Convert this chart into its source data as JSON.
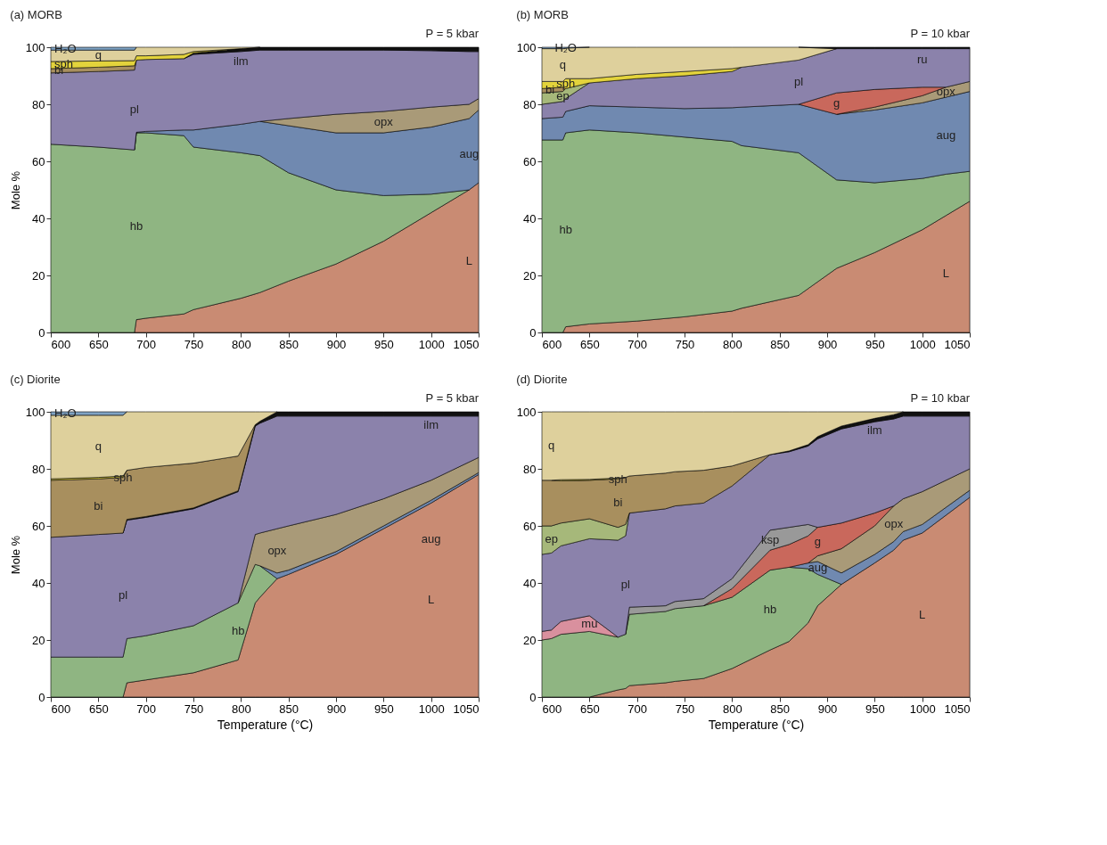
{
  "chart_data": [
    {
      "type": "area",
      "stacked": true,
      "title": "(a) MORB",
      "ylabel": "Mole %",
      "annotations": [
        "P = 5 kbar"
      ],
      "x": [
        600,
        650,
        688,
        690,
        700,
        740,
        750,
        800,
        820,
        850,
        900,
        950,
        1000,
        1040,
        1050
      ],
      "xlim": [
        600,
        1050
      ],
      "xticks": [
        600,
        650,
        700,
        750,
        800,
        850,
        900,
        950,
        1000,
        1050
      ],
      "ylim": [
        0,
        100
      ],
      "yticks": [
        0,
        20,
        40,
        60,
        80,
        100
      ],
      "series": [
        {
          "name": "L",
          "color": "#c98b73",
          "values": [
            null,
            null,
            0,
            4.5,
            5,
            6.5,
            8,
            12,
            14,
            18,
            24,
            32,
            42,
            50,
            52.5
          ]
        },
        {
          "name": "hb",
          "color": "#8fb582",
          "values": [
            66,
            65,
            64,
            65.5,
            65,
            62.5,
            57,
            51,
            48,
            38,
            26,
            16,
            6.5,
            0,
            null
          ]
        },
        {
          "name": "aug",
          "color": "#7089b0",
          "values": [
            null,
            null,
            0,
            0.2,
            0.5,
            2,
            6,
            10,
            12,
            16.5,
            20,
            22,
            23.5,
            25,
            25.5
          ]
        },
        {
          "name": "opx",
          "color": "#a99a78",
          "values": [
            null,
            null,
            null,
            null,
            null,
            null,
            null,
            null,
            0,
            2.5,
            6.5,
            7.5,
            7,
            5,
            4
          ]
        },
        {
          "name": "pl",
          "color": "#8b82ab",
          "values": [
            25,
            26.5,
            28,
            25.3,
            25.2,
            25,
            26.5,
            25.5,
            25,
            24,
            22.5,
            21.5,
            19.8,
            18.5,
            16.5
          ]
        },
        {
          "name": "ilm",
          "color": "#111111",
          "values": [
            null,
            null,
            null,
            null,
            null,
            0,
            0.5,
            1,
            1,
            1,
            1,
            1,
            1.2,
            1.5,
            1.5
          ]
        },
        {
          "name": "bi",
          "color": "#a88f5e",
          "values": [
            1.5,
            1.5,
            1.5,
            0,
            null,
            null,
            null,
            null,
            null,
            null,
            null,
            null,
            null,
            null,
            null
          ]
        },
        {
          "name": "sph",
          "color": "#e3d33c",
          "values": [
            2.5,
            2.2,
            1.8,
            1.5,
            1.3,
            1.5,
            0.5,
            0,
            null,
            null,
            null,
            null,
            null,
            null,
            null
          ]
        },
        {
          "name": "q",
          "color": "#ded09c",
          "values": [
            4,
            3.8,
            3.7,
            3,
            3,
            2.5,
            1.5,
            0.5,
            0,
            null,
            null,
            null,
            null,
            null,
            null
          ]
        },
        {
          "name": "H₂O",
          "color": "#7fa3c4",
          "values": [
            1,
            1,
            1,
            0,
            null,
            null,
            null,
            null,
            null,
            null,
            null,
            null,
            null,
            null,
            null
          ]
        }
      ]
    },
    {
      "type": "area",
      "stacked": true,
      "title": "(b) MORB",
      "annotations": [
        "P = 10 kbar"
      ],
      "x": [
        600,
        622,
        625,
        650,
        700,
        750,
        800,
        810,
        870,
        910,
        950,
        1000,
        1025,
        1050
      ],
      "xlim": [
        600,
        1050
      ],
      "xticks": [
        600,
        650,
        700,
        750,
        800,
        850,
        900,
        950,
        1000,
        1050
      ],
      "ylim": [
        0,
        100
      ],
      "yticks": [
        0,
        20,
        40,
        60,
        80,
        100
      ],
      "series": [
        {
          "name": "L",
          "color": "#c98b73",
          "values": [
            null,
            0,
            2,
            3,
            4,
            5.5,
            7.5,
            8.5,
            13,
            22.5,
            28,
            36,
            41,
            46
          ]
        },
        {
          "name": "hb",
          "color": "#8fb582",
          "values": [
            67.5,
            67.5,
            68,
            68,
            66,
            63,
            59.5,
            57,
            50,
            31,
            24.5,
            18,
            14.5,
            10.5
          ]
        },
        {
          "name": "aug",
          "color": "#7089b0",
          "values": [
            7.5,
            8,
            7.5,
            8.5,
            9,
            10,
            11.8,
            13.5,
            17,
            23,
            25.5,
            26.5,
            27,
            28
          ]
        },
        {
          "name": "opx",
          "color": "#a99a78",
          "values": [
            null,
            null,
            null,
            null,
            null,
            null,
            null,
            null,
            null,
            0,
            1,
            2.5,
            3.5,
            3.5
          ]
        },
        {
          "name": "g",
          "color": "#c9685c",
          "values": [
            null,
            null,
            null,
            null,
            null,
            null,
            null,
            null,
            0,
            7.5,
            6.2,
            3,
            0,
            null
          ]
        },
        {
          "name": "pl",
          "color": "#8b82ab",
          "values": [
            5,
            5.5,
            4.5,
            8,
            10,
            11.5,
            12.7,
            14,
            15.5,
            15.5,
            14.3,
            13.5,
            13.5,
            11.5
          ]
        },
        {
          "name": "ep",
          "color": "#a6b87a",
          "values": [
            4,
            3.5,
            3.5,
            0,
            null,
            null,
            null,
            null,
            null,
            null,
            null,
            null,
            null,
            null
          ]
        },
        {
          "name": "bi",
          "color": "#a88f5e",
          "values": [
            1.5,
            1.5,
            0,
            null,
            null,
            null,
            null,
            null,
            null,
            null,
            null,
            null,
            null,
            null
          ]
        },
        {
          "name": "sph",
          "color": "#e3d33c",
          "values": [
            2.5,
            2,
            3.5,
            1.5,
            1.5,
            1.5,
            1,
            0,
            null,
            null,
            null,
            null,
            null,
            null
          ]
        },
        {
          "name": "q",
          "color": "#ded09c",
          "values": [
            11.5,
            11.5,
            10.7,
            11,
            9.5,
            8.5,
            7.5,
            7,
            4.5,
            0,
            null,
            null,
            null,
            null
          ]
        },
        {
          "name": "H₂O",
          "color": "#7fa3c4",
          "values": [
            0.5,
            0.5,
            0.3,
            0,
            null,
            null,
            null,
            null,
            null,
            null,
            null,
            null,
            null,
            null
          ]
        },
        {
          "name": "ru",
          "color": "#111111",
          "values": [
            null,
            null,
            null,
            null,
            null,
            null,
            null,
            null,
            0,
            0.5,
            0.5,
            0.5,
            0.5,
            0.5
          ]
        }
      ]
    },
    {
      "type": "area",
      "stacked": true,
      "title": "(c) Diorite",
      "xlabel": "Temperature (°C)",
      "ylabel": "Mole %",
      "annotations": [
        "P = 5 kbar"
      ],
      "x": [
        600,
        650,
        676,
        680,
        700,
        750,
        797,
        815,
        820,
        838,
        850,
        900,
        950,
        1000,
        1050
      ],
      "xlim": [
        600,
        1050
      ],
      "xticks": [
        600,
        650,
        700,
        750,
        800,
        850,
        900,
        950,
        1000,
        1050
      ],
      "ylim": [
        0,
        100
      ],
      "yticks": [
        0,
        20,
        40,
        60,
        80,
        100
      ],
      "series": [
        {
          "name": "L",
          "color": "#c98b73",
          "values": [
            null,
            null,
            0,
            5,
            6,
            8.5,
            13,
            33,
            35,
            41.5,
            43,
            50,
            59,
            68,
            78
          ]
        },
        {
          "name": "hb",
          "color": "#8fb582",
          "values": [
            14,
            14,
            14,
            15.5,
            15.5,
            16.5,
            20,
            13.5,
            11,
            0,
            null,
            null,
            null,
            null,
            null
          ]
        },
        {
          "name": "aug",
          "color": "#7089b0",
          "values": [
            null,
            null,
            null,
            null,
            null,
            null,
            null,
            null,
            0,
            2,
            1.5,
            1,
            1,
            1,
            0.7
          ]
        },
        {
          "name": "opx",
          "color": "#a99a78",
          "values": [
            null,
            null,
            null,
            null,
            null,
            null,
            0,
            10.5,
            11.5,
            15.5,
            15.5,
            13,
            9.5,
            7,
            5.3
          ]
        },
        {
          "name": "pl",
          "color": "#8b82ab",
          "values": [
            42,
            43,
            43.5,
            41.5,
            41.5,
            41,
            39,
            38,
            38.5,
            39.5,
            38.5,
            34.5,
            29,
            22.5,
            14.5
          ]
        },
        {
          "name": "ilm",
          "color": "#111111",
          "values": [
            null,
            null,
            0,
            0.3,
            0.3,
            0.3,
            0.3,
            0.5,
            0.7,
            1.5,
            1.5,
            1.5,
            1.5,
            1.5,
            1.5
          ]
        },
        {
          "name": "bi",
          "color": "#a88f5e",
          "values": [
            20,
            19.5,
            19.5,
            17.2,
            17.2,
            15.7,
            12.2,
            0,
            null,
            null,
            null,
            null,
            null,
            null,
            null
          ]
        },
        {
          "name": "sph",
          "color": "#e3d33c",
          "values": [
            0.5,
            0.5,
            0.5,
            0,
            null,
            null,
            null,
            null,
            null,
            null,
            null,
            null,
            null,
            null,
            null
          ]
        },
        {
          "name": "q",
          "color": "#ded09c",
          "values": [
            22.3,
            21.8,
            21.3,
            20.5,
            19.5,
            18,
            15.5,
            4.5,
            3.3,
            0,
            null,
            null,
            null,
            null,
            null
          ]
        },
        {
          "name": "H₂O",
          "color": "#7fa3c4",
          "values": [
            1.2,
            1.2,
            1.2,
            0,
            null,
            null,
            null,
            null,
            null,
            null,
            null,
            null,
            null,
            null,
            null
          ]
        }
      ]
    },
    {
      "type": "area",
      "stacked": true,
      "title": "(d) Diorite",
      "xlabel": "Temperature (°C)",
      "annotations": [
        "P = 10 kbar"
      ],
      "x": [
        600,
        610,
        620,
        650,
        680,
        688,
        692,
        730,
        740,
        770,
        800,
        840,
        860,
        880,
        890,
        915,
        950,
        970,
        980,
        1000,
        1050
      ],
      "xlim": [
        600,
        1050
      ],
      "xticks": [
        600,
        650,
        700,
        750,
        800,
        850,
        900,
        950,
        1000,
        1050
      ],
      "ylim": [
        0,
        100
      ],
      "yticks": [
        0,
        20,
        40,
        60,
        80,
        100
      ],
      "series": [
        {
          "name": "L",
          "color": "#c98b73",
          "values": [
            null,
            null,
            null,
            0,
            2.5,
            3,
            4,
            5,
            5.5,
            6.5,
            10,
            16.5,
            19.5,
            26,
            32,
            39.5,
            47,
            51.5,
            55,
            57.5,
            70
          ]
        },
        {
          "name": "hb",
          "color": "#8fb582",
          "values": [
            20,
            20.5,
            22,
            23,
            18.5,
            19,
            25,
            25,
            25.5,
            25.5,
            25,
            28,
            26,
            19,
            11,
            0,
            null,
            null,
            null,
            null,
            null
          ]
        },
        {
          "name": "mu",
          "color": "#d9909e",
          "values": [
            3,
            3,
            4.5,
            5.5,
            0,
            null,
            null,
            null,
            null,
            null,
            null,
            null,
            null,
            null,
            null,
            null,
            null,
            null,
            null,
            null,
            null
          ]
        },
        {
          "name": "aug",
          "color": "#7089b0",
          "values": [
            null,
            null,
            null,
            null,
            null,
            null,
            null,
            null,
            null,
            null,
            null,
            null,
            0,
            2,
            4.5,
            4,
            3,
            3,
            3,
            3,
            2.5
          ]
        },
        {
          "name": "opx",
          "color": "#a99a78",
          "values": [
            null,
            null,
            null,
            null,
            null,
            null,
            null,
            null,
            null,
            null,
            null,
            null,
            null,
            0,
            2,
            8.5,
            10,
            12.5,
            11.5,
            11.5,
            7.5
          ]
        },
        {
          "name": "g",
          "color": "#c9685c",
          "values": [
            null,
            null,
            null,
            null,
            null,
            null,
            null,
            null,
            null,
            0,
            3,
            7,
            8,
            9.5,
            10,
            9,
            4.5,
            0,
            null,
            null,
            null
          ]
        },
        {
          "name": "ksp",
          "color": "#999999",
          "values": [
            null,
            null,
            null,
            null,
            null,
            0,
            2.5,
            2,
            2.5,
            2.5,
            3.5,
            7,
            6,
            4,
            0,
            null,
            null,
            null,
            null,
            null,
            null
          ]
        },
        {
          "name": "pl",
          "color": "#8b82ab",
          "values": [
            27,
            27,
            26.5,
            27,
            34,
            34.5,
            33,
            34,
            33.5,
            33.5,
            32.5,
            26.5,
            26.5,
            27.5,
            31,
            33,
            32,
            30.5,
            29,
            26.5,
            18.5
          ]
        },
        {
          "name": "ep",
          "color": "#a6b87a",
          "values": [
            10,
            9.5,
            8,
            7,
            4.5,
            4,
            0,
            null,
            null,
            null,
            null,
            null,
            null,
            null,
            null,
            null,
            null,
            null,
            null,
            null,
            null
          ]
        },
        {
          "name": "bi",
          "color": "#a88f5e",
          "values": [
            16,
            16,
            14.8,
            13.5,
            17,
            16.5,
            13,
            12.5,
            12,
            11.5,
            7,
            0,
            null,
            null,
            null,
            null,
            null,
            null,
            null,
            null,
            null
          ]
        },
        {
          "name": "sph",
          "color": "#e3d33c",
          "values": [
            null,
            0,
            0.4,
            0.3,
            0.3,
            0,
            null,
            null,
            null,
            null,
            null,
            null,
            null,
            null,
            null,
            null,
            null,
            null,
            null,
            null,
            null
          ]
        },
        {
          "name": "ilm",
          "color": "#111111",
          "values": [
            null,
            null,
            null,
            null,
            null,
            null,
            null,
            null,
            null,
            null,
            null,
            0,
            0.3,
            0.5,
            0.8,
            1,
            1.2,
            1.5,
            1.5,
            1.5,
            1.5
          ]
        },
        {
          "name": "q",
          "color": "#ded09c",
          "values": [
            24,
            24,
            23.8,
            23.7,
            23.2,
            23,
            22.5,
            21.5,
            21,
            20.5,
            19,
            15,
            13.7,
            11.5,
            8.7,
            5,
            2.3,
            1,
            0,
            null,
            null
          ]
        }
      ]
    }
  ]
}
